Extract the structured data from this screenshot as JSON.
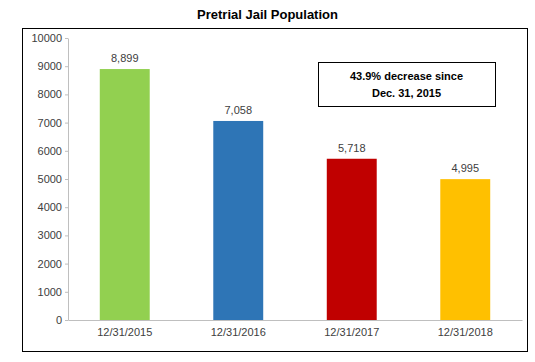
{
  "chart_data": {
    "type": "bar",
    "title": "Pretrial Jail Population",
    "categories": [
      "12/31/2015",
      "12/31/2016",
      "12/31/2017",
      "12/31/2018"
    ],
    "values": [
      8899,
      7058,
      5718,
      4995
    ],
    "value_labels": [
      "8,899",
      "7,058",
      "5,718",
      "4,995"
    ],
    "colors": [
      "#92d050",
      "#2e75b6",
      "#c00000",
      "#ffc000"
    ],
    "ylim": [
      0,
      10000
    ],
    "yticks": [
      0,
      1000,
      2000,
      3000,
      4000,
      5000,
      6000,
      7000,
      8000,
      9000,
      10000
    ],
    "grid": false,
    "data_labels": true,
    "annotations": [
      "43.9% decrease since",
      "Dec. 31, 2015"
    ]
  }
}
